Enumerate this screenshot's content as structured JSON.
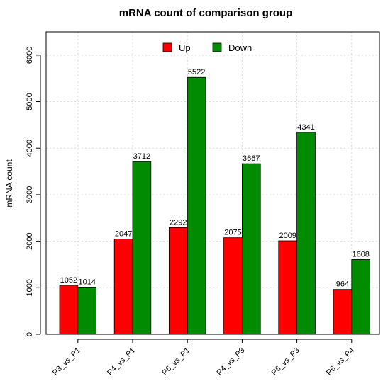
{
  "chart_data": {
    "type": "bar",
    "title": "mRNA count of comparison group",
    "xlabel": "",
    "ylabel": "mRNA count",
    "categories": [
      "P3_vs_P1",
      "P4_vs_P1",
      "P6_vs_P1",
      "P4_vs_P3",
      "P6_vs_P3",
      "P6_vs_P4"
    ],
    "series": [
      {
        "name": "Up",
        "color": "#ff0000",
        "values": [
          1052,
          2047,
          2292,
          2075,
          2009,
          964
        ]
      },
      {
        "name": "Down",
        "color": "#008b00",
        "values": [
          1014,
          3712,
          5522,
          3667,
          4341,
          1608
        ]
      }
    ],
    "ylim": [
      0,
      6500
    ],
    "yticks": [
      0,
      1000,
      2000,
      3000,
      4000,
      5000,
      6000
    ],
    "grid": true,
    "legend_position": "top-center",
    "tick_label_rotation": "45 degrees"
  }
}
